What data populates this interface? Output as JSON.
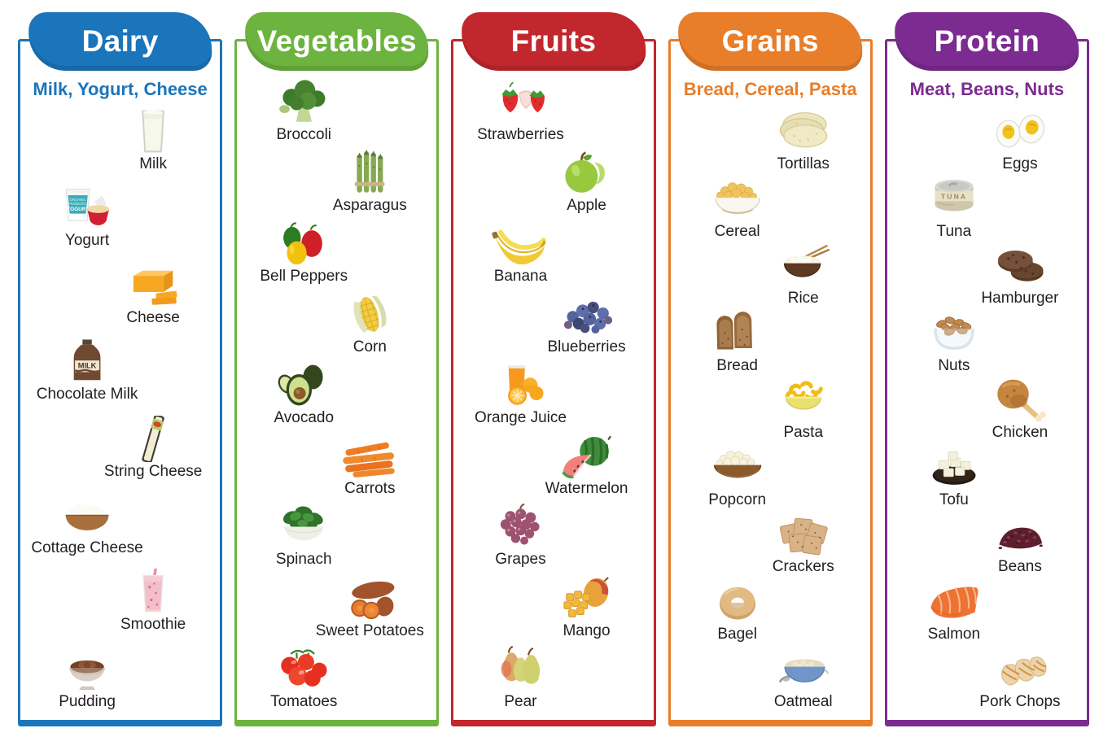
{
  "columns": [
    {
      "id": "dairy",
      "title": "Dairy",
      "subtitle": "Milk, Yogurt, Cheese",
      "color": "#1b75bb",
      "first_item_side": "right",
      "items": [
        {
          "label": "Milk",
          "icon": "milk"
        },
        {
          "label": "Yogurt",
          "icon": "yogurt",
          "photo_text": "ORGANIC PROBIOTIC YOGURT"
        },
        {
          "label": "Cheese",
          "icon": "cheese"
        },
        {
          "label": "Chocolate Milk",
          "icon": "chocolate-milk",
          "photo_text": "MILK"
        },
        {
          "label": "String Cheese",
          "icon": "string-cheese"
        },
        {
          "label": "Cottage Cheese",
          "icon": "cottage-cheese"
        },
        {
          "label": "Smoothie",
          "icon": "smoothie"
        },
        {
          "label": "Pudding",
          "icon": "pudding"
        }
      ]
    },
    {
      "id": "vegetables",
      "title": "Vegetables",
      "subtitle": "",
      "color": "#6cb33f",
      "first_item_side": "left",
      "items": [
        {
          "label": "Broccoli",
          "icon": "broccoli"
        },
        {
          "label": "Asparagus",
          "icon": "asparagus"
        },
        {
          "label": "Bell Peppers",
          "icon": "bell-peppers"
        },
        {
          "label": "Corn",
          "icon": "corn"
        },
        {
          "label": "Avocado",
          "icon": "avocado"
        },
        {
          "label": "Carrots",
          "icon": "carrots"
        },
        {
          "label": "Spinach",
          "icon": "spinach"
        },
        {
          "label": "Sweet Potatoes",
          "icon": "sweet-potatoes"
        },
        {
          "label": "Tomatoes",
          "icon": "tomatoes"
        }
      ]
    },
    {
      "id": "fruits",
      "title": "Fruits",
      "subtitle": "",
      "color": "#c1272d",
      "first_item_side": "left",
      "items": [
        {
          "label": "Strawberries",
          "icon": "strawberries"
        },
        {
          "label": "Apple",
          "icon": "apple"
        },
        {
          "label": "Banana",
          "icon": "banana"
        },
        {
          "label": "Blueberries",
          "icon": "blueberries"
        },
        {
          "label": "Orange Juice",
          "icon": "orange-juice"
        },
        {
          "label": "Watermelon",
          "icon": "watermelon"
        },
        {
          "label": "Grapes",
          "icon": "grapes"
        },
        {
          "label": "Mango",
          "icon": "mango"
        },
        {
          "label": "Pear",
          "icon": "pear"
        }
      ]
    },
    {
      "id": "grains",
      "title": "Grains",
      "subtitle": "Bread, Cereal, Pasta",
      "color": "#e87d2a",
      "first_item_side": "right",
      "items": [
        {
          "label": "Tortillas",
          "icon": "tortillas"
        },
        {
          "label": "Cereal",
          "icon": "cereal"
        },
        {
          "label": "Rice",
          "icon": "rice"
        },
        {
          "label": "Bread",
          "icon": "bread"
        },
        {
          "label": "Pasta",
          "icon": "pasta"
        },
        {
          "label": "Popcorn",
          "icon": "popcorn"
        },
        {
          "label": "Crackers",
          "icon": "crackers"
        },
        {
          "label": "Bagel",
          "icon": "bagel"
        },
        {
          "label": "Oatmeal",
          "icon": "oatmeal"
        }
      ]
    },
    {
      "id": "protein",
      "title": "Protein",
      "subtitle": "Meat, Beans, Nuts",
      "color": "#7c2b90",
      "first_item_side": "right",
      "items": [
        {
          "label": "Eggs",
          "icon": "eggs"
        },
        {
          "label": "Tuna",
          "icon": "tuna",
          "photo_text": "TUNA"
        },
        {
          "label": "Hamburger",
          "icon": "hamburger"
        },
        {
          "label": "Nuts",
          "icon": "nuts"
        },
        {
          "label": "Chicken",
          "icon": "chicken"
        },
        {
          "label": "Tofu",
          "icon": "tofu"
        },
        {
          "label": "Beans",
          "icon": "beans"
        },
        {
          "label": "Salmon",
          "icon": "salmon"
        },
        {
          "label": "Pork Chops",
          "icon": "pork-chops"
        }
      ]
    }
  ]
}
